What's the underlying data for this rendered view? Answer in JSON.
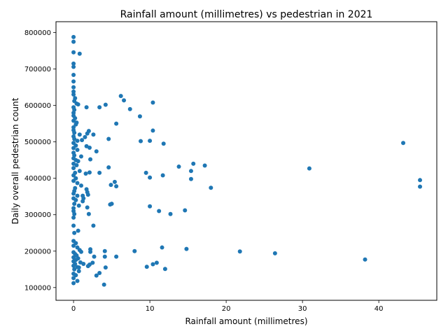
{
  "chart_data": {
    "type": "scatter",
    "title": "Rainfall amount (millimetres) vs pedestrian in 2021",
    "xlabel": "Rainfall amount (millimetres)",
    "ylabel": "Daily overall pedestrian count",
    "xlim": [
      -2.3,
      47.6
    ],
    "ylim": [
      65000,
      830000
    ],
    "xticks": [
      0,
      10,
      20,
      30,
      40
    ],
    "yticks": [
      100000,
      200000,
      300000,
      400000,
      500000,
      600000,
      700000,
      800000
    ],
    "xtick_labels": [
      "0",
      "10",
      "20",
      "30",
      "40"
    ],
    "ytick_labels": [
      "100000",
      "200000",
      "300000",
      "400000",
      "500000",
      "600000",
      "700000",
      "800000"
    ],
    "grid": false,
    "marker_color": "#1f77b4",
    "points": [
      [
        0,
        788000
      ],
      [
        0,
        775000
      ],
      [
        0,
        746000
      ],
      [
        0.8,
        742000
      ],
      [
        0,
        715000
      ],
      [
        0,
        706000
      ],
      [
        0,
        684000
      ],
      [
        0,
        666000
      ],
      [
        0,
        650000
      ],
      [
        0,
        638000
      ],
      [
        0,
        630000
      ],
      [
        0.2,
        620000
      ],
      [
        0.1,
        612000
      ],
      [
        0.4,
        605000
      ],
      [
        0.6,
        603000
      ],
      [
        0,
        595000
      ],
      [
        0.1,
        588000
      ],
      [
        0,
        580000
      ],
      [
        0,
        572000
      ],
      [
        0.2,
        565000
      ],
      [
        0,
        558000
      ],
      [
        0.4,
        553000
      ],
      [
        0.3,
        548000
      ],
      [
        0,
        540000
      ],
      [
        0,
        532000
      ],
      [
        0.1,
        525000
      ],
      [
        0.8,
        520000
      ],
      [
        0,
        515000
      ],
      [
        0.1,
        508000
      ],
      [
        0.5,
        503000
      ],
      [
        1.1,
        505000
      ],
      [
        0,
        497000
      ],
      [
        0.3,
        490000
      ],
      [
        0,
        483000
      ],
      [
        0.5,
        478000
      ],
      [
        0,
        470000
      ],
      [
        0.1,
        463000
      ],
      [
        1.0,
        460000
      ],
      [
        0,
        455000
      ],
      [
        0.3,
        450000
      ],
      [
        0.6,
        447000
      ],
      [
        0,
        440000
      ],
      [
        0.4,
        436000
      ],
      [
        0,
        428000
      ],
      [
        0.8,
        420000
      ],
      [
        0.2,
        415000
      ],
      [
        0,
        408000
      ],
      [
        0.3,
        400000
      ],
      [
        0,
        393000
      ],
      [
        0.5,
        387000
      ],
      [
        1.0,
        380000
      ],
      [
        0.2,
        373000
      ],
      [
        0.1,
        365000
      ],
      [
        0,
        358000
      ],
      [
        0.5,
        352000
      ],
      [
        0,
        345000
      ],
      [
        0.3,
        340000
      ],
      [
        1.2,
        337000
      ],
      [
        0.1,
        330000
      ],
      [
        0.7,
        325000
      ],
      [
        0,
        318000
      ],
      [
        0,
        310000
      ],
      [
        0.1,
        302000
      ],
      [
        0,
        292000
      ],
      [
        0,
        270000
      ],
      [
        0.6,
        256000
      ],
      [
        0.1,
        250000
      ],
      [
        0,
        228000
      ],
      [
        0.3,
        222000
      ],
      [
        0,
        215000
      ],
      [
        0.5,
        210000
      ],
      [
        0.8,
        203000
      ],
      [
        0,
        197000
      ],
      [
        0.2,
        192000
      ],
      [
        0.4,
        188000
      ],
      [
        0,
        183000
      ],
      [
        0.6,
        180000
      ],
      [
        0.3,
        176000
      ],
      [
        0,
        172000
      ],
      [
        0.9,
        169000
      ],
      [
        0.2,
        165000
      ],
      [
        0,
        160000
      ],
      [
        0.5,
        156000
      ],
      [
        0.1,
        150000
      ],
      [
        0.7,
        145000
      ],
      [
        0,
        138000
      ],
      [
        0.3,
        134000
      ],
      [
        0,
        126000
      ],
      [
        0.5,
        118000
      ],
      [
        0,
        112000
      ],
      [
        1.3,
        165000
      ],
      [
        1.0,
        198000
      ],
      [
        0.7,
        155000
      ],
      [
        1.2,
        352000
      ],
      [
        1.7,
        595000
      ],
      [
        4.2,
        602000
      ],
      [
        3.4,
        595000
      ],
      [
        6.2,
        626000
      ],
      [
        6.6,
        614000
      ],
      [
        7.4,
        590000
      ],
      [
        10.4,
        608000
      ],
      [
        8.7,
        570000
      ],
      [
        5.6,
        550000
      ],
      [
        10.4,
        531000
      ],
      [
        2.0,
        530000
      ],
      [
        2.6,
        520000
      ],
      [
        1.8,
        523000
      ],
      [
        1.5,
        513000
      ],
      [
        4.6,
        508000
      ],
      [
        8.8,
        502000
      ],
      [
        10.0,
        503000
      ],
      [
        11.8,
        495000
      ],
      [
        2.1,
        484000
      ],
      [
        1.7,
        488000
      ],
      [
        3.0,
        474000
      ],
      [
        2.2,
        452000
      ],
      [
        4.6,
        430000
      ],
      [
        1.6,
        413000
      ],
      [
        2.1,
        416000
      ],
      [
        3.4,
        415000
      ],
      [
        9.5,
        415000
      ],
      [
        10.0,
        402000
      ],
      [
        11.7,
        408000
      ],
      [
        5.4,
        390000
      ],
      [
        4.9,
        382000
      ],
      [
        5.6,
        378000
      ],
      [
        1.7,
        370000
      ],
      [
        1.8,
        362000
      ],
      [
        1.9,
        355000
      ],
      [
        1.3,
        345000
      ],
      [
        4.8,
        328000
      ],
      [
        5.0,
        330000
      ],
      [
        1.8,
        320000
      ],
      [
        2.0,
        302000
      ],
      [
        10.0,
        323000
      ],
      [
        11.2,
        310000
      ],
      [
        12.7,
        302000
      ],
      [
        14.6,
        312000
      ],
      [
        13.8,
        432000
      ],
      [
        15.7,
        440000
      ],
      [
        15.4,
        420000
      ],
      [
        17.2,
        435000
      ],
      [
        15.4,
        398000
      ],
      [
        18.0,
        374000
      ],
      [
        2.6,
        270000
      ],
      [
        2.2,
        205000
      ],
      [
        2.2,
        198000
      ],
      [
        4.1,
        200000
      ],
      [
        8.0,
        200000
      ],
      [
        11.6,
        210000
      ],
      [
        14.8,
        206000
      ],
      [
        21.8,
        199000
      ],
      [
        26.4,
        194000
      ],
      [
        2.7,
        185000
      ],
      [
        4.1,
        185000
      ],
      [
        5.6,
        185000
      ],
      [
        2.5,
        168000
      ],
      [
        2.1,
        163000
      ],
      [
        1.9,
        159000
      ],
      [
        4.2,
        155000
      ],
      [
        3.4,
        140000
      ],
      [
        3.0,
        133000
      ],
      [
        4.0,
        108000
      ],
      [
        9.6,
        157000
      ],
      [
        10.4,
        164000
      ],
      [
        10.9,
        168000
      ],
      [
        12.0,
        151000
      ],
      [
        30.9,
        427000
      ],
      [
        43.2,
        497000
      ],
      [
        45.4,
        395000
      ],
      [
        45.4,
        377000
      ],
      [
        38.2,
        177000
      ]
    ]
  }
}
